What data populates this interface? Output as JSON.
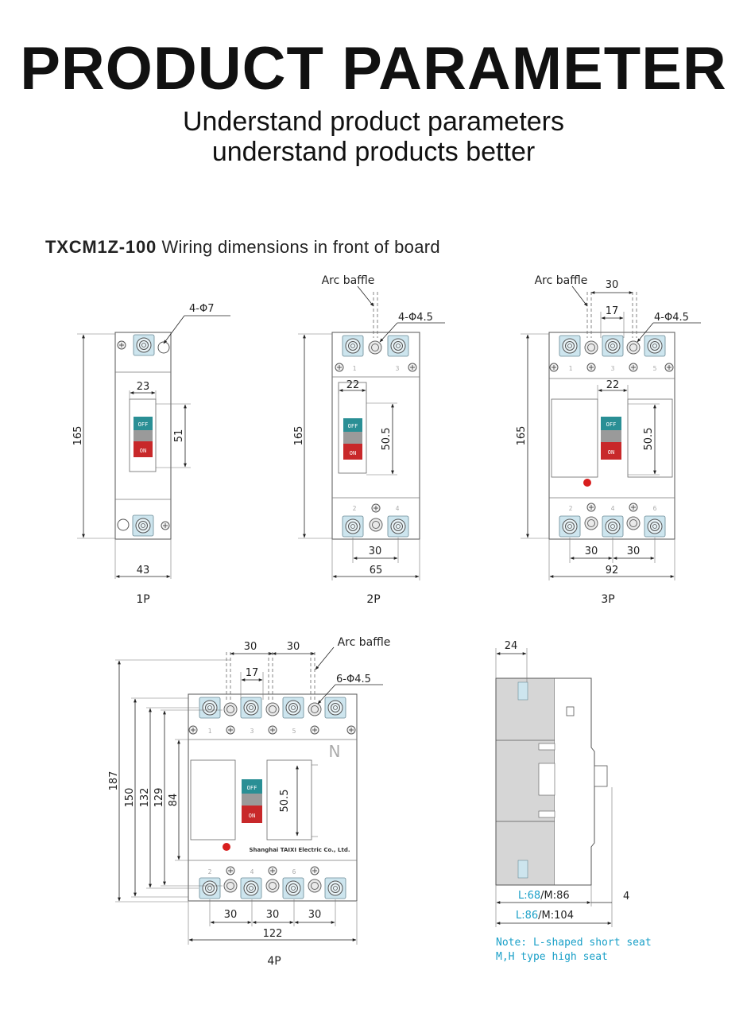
{
  "header": {
    "title": "PRODUCT PARAMETER",
    "subtitle_line1": "Understand product parameters",
    "subtitle_line2": "understand products better"
  },
  "section": {
    "model": "TXCM1Z-100",
    "caption": " Wiring dimensions in front of board"
  },
  "labels": {
    "arc_baffle": "Arc baffle",
    "hole_4_7": "4-Φ7",
    "hole_4_45": "4-Φ4.5",
    "hole_6_45": "6-Φ4.5",
    "switch_off": "OFF",
    "switch_on": "ON",
    "brand": "Shanghai TAIXI Electric Co., Ltd.",
    "neutral": "N",
    "term_1": "1",
    "term_2": "2",
    "term_3": "3",
    "term_4": "4",
    "term_5": "5",
    "term_6": "6"
  },
  "poles": {
    "p1": "1P",
    "p2": "2P",
    "p3": "3P",
    "p4": "4P"
  },
  "dims": {
    "d165": "165",
    "d43": "43",
    "d23": "23",
    "d51": "51",
    "d22": "22",
    "d50_5": "50.5",
    "d30": "30",
    "d65": "65",
    "d17": "17",
    "d92": "92",
    "d187": "187",
    "d150": "150",
    "d132": "132",
    "d129": "129",
    "d84": "84",
    "d122": "122",
    "d24": "24",
    "d4": "4"
  },
  "side": {
    "l68_prefix": "L:",
    "l68_value": "68",
    "m86": "/M:86",
    "l86_prefix": "L:",
    "l86_value": "86",
    "m104": "/M:104",
    "note_line1": "Note: L-shaped short seat",
    "note_line2": "M,H type high seat"
  },
  "colors": {
    "terminal": "#cde5ee",
    "off_button": "#2a8f95",
    "on_button": "#c8282a",
    "indicator": "#d81e1e",
    "note": "#1aa0c8",
    "side_body": "#d6d6d6"
  }
}
